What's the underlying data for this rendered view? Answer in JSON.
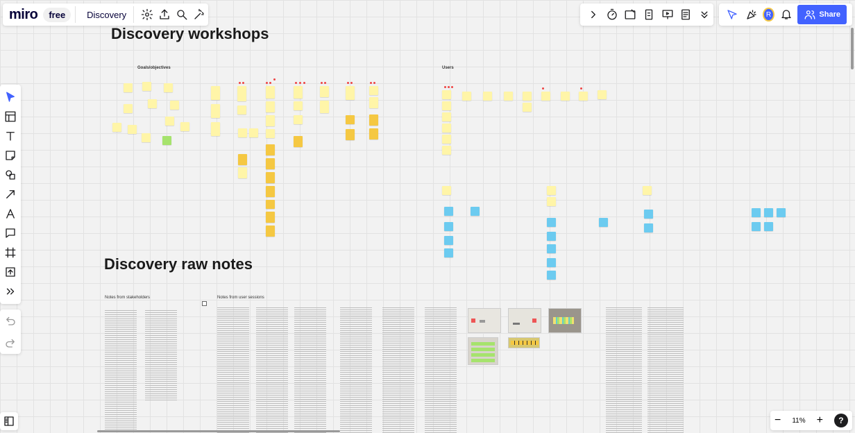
{
  "topbar": {
    "logo": "miro",
    "plan": "free",
    "board_name": "Discovery",
    "share_label": "Share",
    "avatar_initial": "R"
  },
  "zoom": {
    "level": "11%",
    "minus": "−",
    "plus": "+",
    "help": "?"
  },
  "sections": {
    "workshops_title": "Discovery workshops",
    "raw_notes_title": "Discovery raw notes",
    "goals_label": "Goals/objectives",
    "users_label": "Users",
    "stakeholders_label": "Notes from stakeholders",
    "user_sessions_label": "Notes from user sessions"
  },
  "colors": {
    "accent": "#4262ff",
    "sticky_yellow": "#fff5a8",
    "sticky_orange": "#f5c842",
    "sticky_blue": "#6ccbf0",
    "sticky_green": "#a6e36d"
  },
  "icons": {
    "settings": "gear-icon",
    "upload": "upload-icon",
    "search": "search-icon",
    "magic": "magic-icon",
    "cursor": "cursor-icon",
    "bell": "bell-icon"
  }
}
